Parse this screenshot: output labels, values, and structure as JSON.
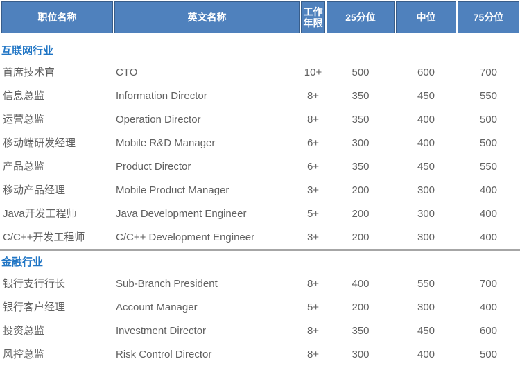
{
  "header": {
    "columns": [
      "职位名称",
      "英文名称",
      "工作年限",
      "25分位",
      "中位",
      "75分位"
    ]
  },
  "colors": {
    "header_bg": "#4F81BD",
    "header_border": "#385D8A",
    "header_text": "#FFFFFF",
    "section_title": "#2176C5",
    "body_text": "#616161",
    "divider": "#A6A6A6"
  },
  "sections": [
    {
      "title": "互联网行业",
      "rows": [
        {
          "name": "首席技术官",
          "en": "CTO",
          "years": "10+",
          "p25": "500",
          "median": "600",
          "p75": "700"
        },
        {
          "name": "信息总监",
          "en": "Information Director",
          "years": "8+",
          "p25": "350",
          "median": "450",
          "p75": "550"
        },
        {
          "name": "运营总监",
          "en": "Operation Director",
          "years": "8+",
          "p25": "350",
          "median": "400",
          "p75": "500"
        },
        {
          "name": "移动端研发经理",
          "en": "Mobile R&D Manager",
          "years": "6+",
          "p25": "300",
          "median": "400",
          "p75": "500"
        },
        {
          "name": "产品总监",
          "en": "Product Director",
          "years": "6+",
          "p25": "350",
          "median": "450",
          "p75": "550"
        },
        {
          "name": "移动产品经理",
          "en": "Mobile Product Manager",
          "years": "3+",
          "p25": "200",
          "median": "300",
          "p75": "400"
        },
        {
          "name": "Java开发工程师",
          "en": "Java Development Engineer",
          "years": "5+",
          "p25": "200",
          "median": "300",
          "p75": "400"
        },
        {
          "name": "C/C++开发工程师",
          "en": "C/C++ Development Engineer",
          "years": "3+",
          "p25": "200",
          "median": "300",
          "p75": "400"
        }
      ]
    },
    {
      "title": "金融行业",
      "rows": [
        {
          "name": "银行支行行长",
          "en": "Sub-Branch President",
          "years": "8+",
          "p25": "400",
          "median": "550",
          "p75": "700"
        },
        {
          "name": "银行客户经理",
          "en": "Account Manager",
          "years": "5+",
          "p25": "200",
          "median": "300",
          "p75": "400"
        },
        {
          "name": "投资总监",
          "en": "Investment Director",
          "years": "8+",
          "p25": "350",
          "median": "450",
          "p75": "600"
        },
        {
          "name": "风控总监",
          "en": "Risk Control Director",
          "years": "8+",
          "p25": "300",
          "median": "400",
          "p75": "500"
        }
      ]
    }
  ]
}
